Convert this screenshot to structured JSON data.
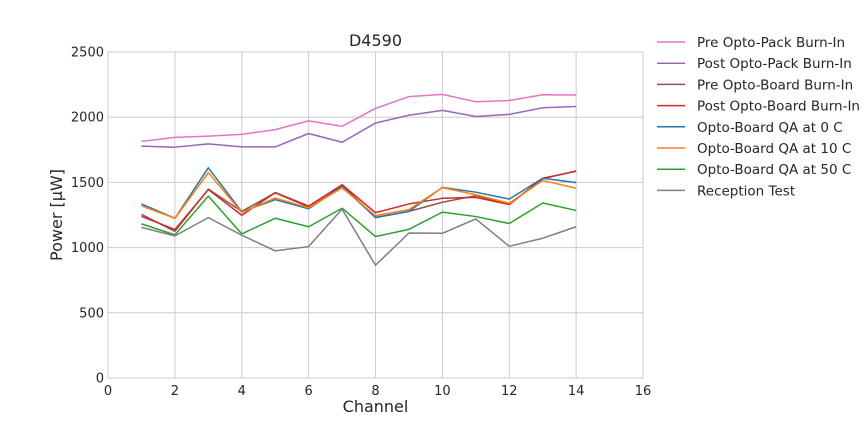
{
  "chart_data": {
    "type": "line",
    "title": "D4590",
    "xlabel": "Channel",
    "ylabel": "Power [μW]",
    "xlim": [
      0,
      16
    ],
    "ylim": [
      0,
      2500
    ],
    "xticks": [
      0,
      2,
      4,
      6,
      8,
      10,
      12,
      14,
      16
    ],
    "yticks": [
      0,
      500,
      1000,
      1500,
      2000,
      2500
    ],
    "grid": true,
    "legend_position": "outside-right",
    "x": [
      1,
      2,
      3,
      4,
      5,
      6,
      7,
      8,
      9,
      10,
      11,
      12,
      13,
      14
    ],
    "series": [
      {
        "name": "Pre Opto-Pack Burn-In",
        "color": "#e377c2",
        "values": [
          1815,
          1845,
          1855,
          1868,
          1905,
          1972,
          1930,
          2068,
          2158,
          2175,
          2118,
          2128,
          2172,
          2170
        ]
      },
      {
        "name": "Post Opto-Pack Burn-In",
        "color": "#9467bd",
        "values": [
          1778,
          1770,
          1795,
          1772,
          1772,
          1875,
          1808,
          1955,
          2015,
          2052,
          2005,
          2022,
          2072,
          2082
        ]
      },
      {
        "name": "Pre Opto-Board Burn-In",
        "color": "#8c564b",
        "values": [
          1255,
          1125,
          1448,
          1278,
          1420,
          1312,
          1478,
          1232,
          1278,
          1348,
          1398,
          1335,
          1528,
          1588
        ]
      },
      {
        "name": "Post Opto-Board Burn-In",
        "color": "#d62728",
        "values": [
          1240,
          1138,
          1445,
          1248,
          1422,
          1318,
          1482,
          1268,
          1335,
          1378,
          1385,
          1330,
          1532,
          1585
        ]
      },
      {
        "name": "Opto-Board QA at 0 C",
        "color": "#1f77b4",
        "values": [
          1335,
          1225,
          1612,
          1275,
          1368,
          1298,
          1468,
          1230,
          1278,
          1462,
          1425,
          1372,
          1532,
          1498
        ]
      },
      {
        "name": "Opto-Board QA at 10 C",
        "color": "#ff7f0e",
        "values": [
          1320,
          1225,
          1575,
          1270,
          1380,
          1305,
          1458,
          1245,
          1292,
          1460,
          1405,
          1340,
          1515,
          1455
        ]
      },
      {
        "name": "Opto-Board QA at 50 C",
        "color": "#2ca02c",
        "values": [
          1182,
          1098,
          1395,
          1105,
          1225,
          1160,
          1302,
          1085,
          1140,
          1272,
          1238,
          1185,
          1342,
          1285
        ]
      },
      {
        "name": "Reception Test",
        "color": "#7f7f7f",
        "values": [
          1155,
          1090,
          1230,
          1095,
          975,
          1008,
          1295,
          865,
          1112,
          1110,
          1220,
          1010,
          1072,
          1160
        ]
      }
    ]
  }
}
